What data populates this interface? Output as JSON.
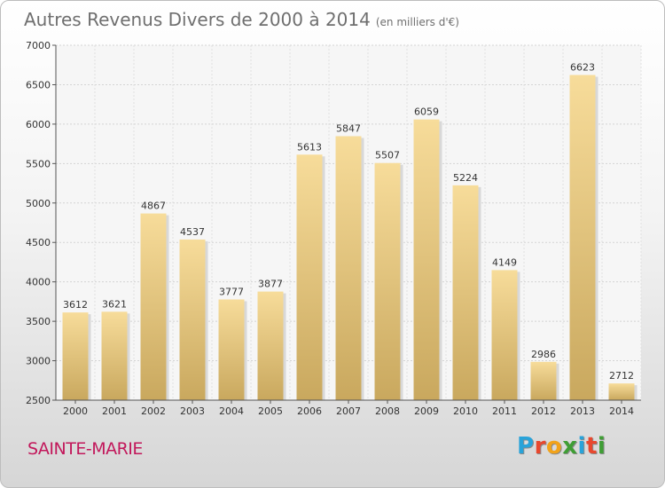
{
  "title": "Autres Revenus Divers de 2000 à 2014",
  "title_unit": "(en milliers d'€)",
  "commune": "SAINTE-MARIE",
  "logo": {
    "letters": [
      "P",
      "r",
      "o",
      "x",
      "i",
      "t",
      "i"
    ],
    "colors": [
      "#29a3d9",
      "#e8482e",
      "#f2a31a",
      "#3f9e35",
      "#29a3d9",
      "#e8482e",
      "#3f9e35"
    ]
  },
  "colors": {
    "bar_light": "#f7dc9a",
    "bar_dark": "#c9a85e",
    "commune_text": "#c2185b"
  },
  "chart_data": {
    "type": "bar",
    "categories": [
      "2000",
      "2001",
      "2002",
      "2003",
      "2004",
      "2005",
      "2006",
      "2007",
      "2008",
      "2009",
      "2010",
      "2011",
      "2012",
      "2013",
      "2014"
    ],
    "values": [
      3612,
      3621,
      4867,
      4537,
      3777,
      3877,
      5613,
      5847,
      5507,
      6059,
      5224,
      4149,
      2986,
      6623,
      2712
    ],
    "title": "Autres Revenus Divers de 2000 à 2014",
    "xlabel": "",
    "ylabel": "",
    "ylim": [
      2500,
      7000
    ],
    "yticks": [
      2500,
      3000,
      3500,
      4000,
      4500,
      5000,
      5500,
      6000,
      6500,
      7000
    ],
    "grid": true
  }
}
